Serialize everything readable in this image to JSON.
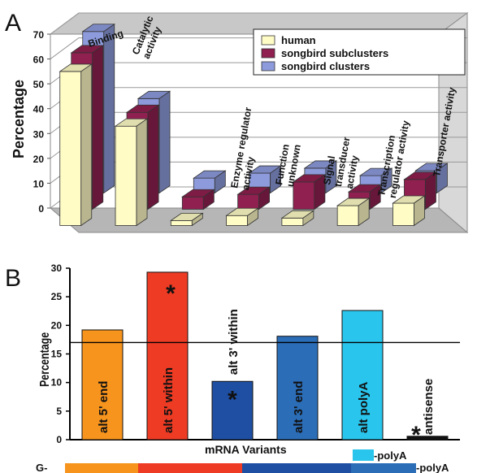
{
  "panel_a": {
    "letter": "A",
    "chart_data": {
      "type": "bar",
      "ylabel": "Percentage",
      "ylim": [
        0,
        70
      ],
      "yticks": [
        "0",
        "10",
        "20",
        "30",
        "40",
        "50",
        "60",
        "70"
      ],
      "categories": [
        "Binding",
        "Catalytic activity",
        "Enzyme regulator activity",
        "Function unknown",
        "Signal transducer activity",
        "Transcription regulator activity",
        "Transporter activity"
      ],
      "category_label_lines": [
        [
          "Binding"
        ],
        [
          "Catalytic",
          "activity"
        ],
        [
          "Enzyme regulator",
          "activity"
        ],
        [
          "Function",
          "unknown"
        ],
        [
          "Signal",
          "transducer",
          "activity"
        ],
        [
          "Transcription",
          "regulator activity"
        ],
        [
          "Transporter activity"
        ]
      ],
      "series": [
        {
          "name": "human",
          "color": "#fffcc6",
          "values": [
            62,
            40,
            2,
            4,
            3,
            8,
            9
          ]
        },
        {
          "name": "songbird subclusters",
          "color": "#8f2050",
          "values": [
            63,
            39,
            5,
            6,
            11,
            7,
            12
          ]
        },
        {
          "name": "songbird clusters",
          "color": "#8d9bdc",
          "values": [
            65,
            38,
            6,
            8,
            10,
            7,
            9
          ]
        }
      ],
      "legend_position": "top-right"
    }
  },
  "panel_b": {
    "letter": "B",
    "chart_data": {
      "type": "bar",
      "xlabel": "mRNA Variants",
      "ylabel": "Percentage",
      "ylim": [
        0,
        30
      ],
      "yticks": [
        "0",
        "5",
        "10",
        "15",
        "20",
        "25",
        "30"
      ],
      "reference_line": 17,
      "categories": [
        "alt 5' end",
        "alt 5' within",
        "alt 3' within",
        "alt 3' end",
        "alt polyA",
        "antisense"
      ],
      "bar_labels": [
        "alt 5' end",
        "alt 5' within",
        "alt 3' within",
        "alt 3' end",
        "alt polyA",
        "antisense"
      ],
      "values": [
        19.2,
        29.3,
        10.2,
        18.1,
        22.6,
        0.6
      ],
      "colors": [
        "#f7941d",
        "#ee3b24",
        "#1f4fa3",
        "#2b6db7",
        "#29c5ec",
        "#111111"
      ],
      "significance_marker": "*",
      "significant": [
        false,
        true,
        true,
        false,
        false,
        true
      ]
    },
    "schematic": {
      "start_label": "G-",
      "end_label_top": "-polyA",
      "end_label_bottom": "-polyA"
    }
  }
}
